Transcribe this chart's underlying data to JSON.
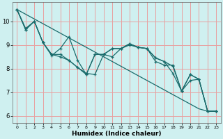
{
  "xlabel": "Humidex (Indice chaleur)",
  "background_color": "#cff0f0",
  "grid_color": "#e8a0a0",
  "line_color": "#1a6b6b",
  "xlim": [
    -0.5,
    23.5
  ],
  "ylim": [
    5.7,
    10.8
  ],
  "yticks": [
    6,
    7,
    8,
    9,
    10
  ],
  "xticks": [
    0,
    1,
    2,
    3,
    4,
    5,
    6,
    7,
    8,
    9,
    10,
    11,
    12,
    13,
    14,
    15,
    16,
    17,
    18,
    19,
    20,
    21,
    22,
    23
  ],
  "line_straight": [
    10.5,
    10.3,
    10.1,
    9.9,
    9.7,
    9.5,
    9.3,
    9.1,
    8.9,
    8.7,
    8.5,
    8.3,
    8.1,
    7.9,
    7.7,
    7.5,
    7.3,
    7.1,
    6.9,
    6.7,
    6.5,
    6.3,
    6.2,
    6.2
  ],
  "line1": [
    10.5,
    9.7,
    10.0,
    9.1,
    8.6,
    8.5,
    8.35,
    8.05,
    7.75,
    8.6,
    8.6,
    8.85,
    8.85,
    9.05,
    8.9,
    8.85,
    8.45,
    8.3,
    7.8,
    7.05,
    7.75,
    7.55,
    6.2,
    6.2
  ],
  "line2": [
    10.5,
    9.65,
    10.0,
    9.1,
    8.55,
    8.85,
    9.35,
    8.35,
    7.75,
    8.6,
    8.6,
    8.5,
    8.85,
    9.05,
    8.9,
    8.85,
    8.3,
    8.15,
    8.15,
    7.05,
    7.5,
    7.55,
    6.2,
    6.2
  ],
  "line3": [
    10.5,
    9.65,
    10.0,
    9.1,
    8.6,
    8.6,
    8.35,
    8.05,
    7.8,
    7.75,
    8.6,
    8.85,
    8.85,
    9.0,
    8.9,
    8.85,
    8.45,
    8.3,
    8.1,
    7.05,
    7.75,
    7.55,
    6.2,
    6.2
  ]
}
